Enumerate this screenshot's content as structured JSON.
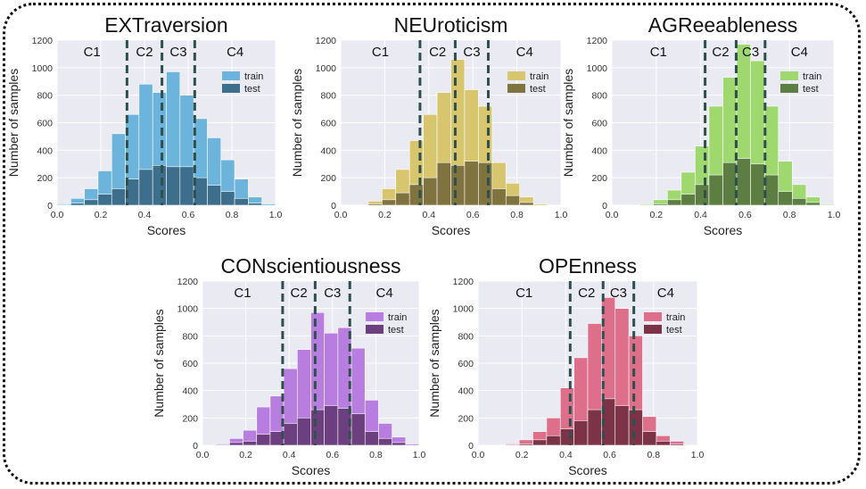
{
  "colors": {
    "plot_background": "#eaeaf2",
    "grid": "#ffffff",
    "divider": "#2f4f4f"
  },
  "chart_data": [
    {
      "type": "bar",
      "title": "EXTraversion",
      "xlabel": "Scores",
      "ylabel": "Number of samples",
      "xlim": [
        0.0,
        1.0
      ],
      "ylim": [
        0,
        1200
      ],
      "xticks": [
        "0.0",
        "0.2",
        "0.4",
        "0.6",
        "0.8",
        "1.0"
      ],
      "yticks": [
        "0",
        "200",
        "400",
        "600",
        "800",
        "1000",
        "1200"
      ],
      "grid": true,
      "legend": "upper-right",
      "bin_edges": [
        0.0,
        0.0625,
        0.125,
        0.1875,
        0.25,
        0.3125,
        0.375,
        0.4375,
        0.5,
        0.5625,
        0.625,
        0.6875,
        0.75,
        0.8125,
        0.875,
        0.9375
      ],
      "series": [
        {
          "name": "train",
          "color": "#6cb4dc",
          "values": [
            10,
            50,
            120,
            250,
            520,
            660,
            880,
            820,
            970,
            800,
            630,
            490,
            330,
            190,
            60,
            10
          ]
        },
        {
          "name": "test",
          "color": "#3d6e8c",
          "values": [
            2,
            15,
            40,
            80,
            120,
            190,
            260,
            290,
            280,
            280,
            200,
            145,
            100,
            50,
            15,
            0
          ]
        }
      ],
      "class_labels": [
        "C1",
        "C2",
        "C3",
        "C4"
      ],
      "thresholds": [
        0.32,
        0.48,
        0.63
      ]
    },
    {
      "type": "bar",
      "title": "NEUroticism",
      "xlabel": "Scores",
      "ylabel": "Number of samples",
      "xlim": [
        0.0,
        1.0
      ],
      "ylim": [
        0,
        1200
      ],
      "xticks": [
        "0.0",
        "0.2",
        "0.4",
        "0.6",
        "0.8",
        "1.0"
      ],
      "yticks": [
        "0",
        "200",
        "400",
        "600",
        "800",
        "1000",
        "1200"
      ],
      "grid": true,
      "legend": "upper-right",
      "bin_edges": [
        0.0,
        0.0625,
        0.125,
        0.1875,
        0.25,
        0.3125,
        0.375,
        0.4375,
        0.5,
        0.5625,
        0.625,
        0.6875,
        0.75,
        0.8125,
        0.875,
        0.9375
      ],
      "series": [
        {
          "name": "train",
          "color": "#d7c66e",
          "values": [
            0,
            0,
            30,
            120,
            260,
            470,
            660,
            820,
            1060,
            840,
            720,
            310,
            160,
            60,
            10,
            0
          ]
        },
        {
          "name": "test",
          "color": "#7f7340",
          "values": [
            0,
            0,
            10,
            40,
            90,
            150,
            200,
            310,
            290,
            320,
            310,
            120,
            70,
            20,
            0,
            0
          ]
        }
      ],
      "class_labels": [
        "C1",
        "C2",
        "C3",
        "C4"
      ],
      "thresholds": [
        0.36,
        0.52,
        0.67
      ]
    },
    {
      "type": "bar",
      "title": "AGReeableness",
      "xlabel": "Scores",
      "ylabel": "Number of samples",
      "xlim": [
        0.0,
        1.0
      ],
      "ylim": [
        0,
        1200
      ],
      "xticks": [
        "0.0",
        "0.2",
        "0.4",
        "0.6",
        "0.8",
        "1.0"
      ],
      "yticks": [
        "0",
        "200",
        "400",
        "600",
        "800",
        "1000",
        "1200"
      ],
      "grid": true,
      "legend": "upper-right",
      "bin_edges": [
        0.0,
        0.0625,
        0.125,
        0.1875,
        0.25,
        0.3125,
        0.375,
        0.4375,
        0.5,
        0.5625,
        0.625,
        0.6875,
        0.75,
        0.8125,
        0.875,
        0.9375
      ],
      "series": [
        {
          "name": "train",
          "color": "#9ed86e",
          "values": [
            0,
            0,
            10,
            40,
            110,
            240,
            430,
            720,
            930,
            1170,
            1050,
            720,
            320,
            150,
            60,
            10
          ]
        },
        {
          "name": "test",
          "color": "#5c7e42",
          "values": [
            0,
            0,
            2,
            10,
            40,
            80,
            150,
            220,
            310,
            340,
            300,
            220,
            100,
            50,
            20,
            5
          ]
        }
      ],
      "class_labels": [
        "C1",
        "C2",
        "C3",
        "C4"
      ],
      "thresholds": [
        0.42,
        0.56,
        0.69
      ]
    },
    {
      "type": "bar",
      "title": "CONscientiousness",
      "xlabel": "Scores",
      "ylabel": "Number of samples",
      "xlim": [
        0.0,
        1.0
      ],
      "ylim": [
        0,
        1200
      ],
      "xticks": [
        "0.0",
        "0.2",
        "0.4",
        "0.6",
        "0.8",
        "1.0"
      ],
      "yticks": [
        "0",
        "200",
        "400",
        "600",
        "800",
        "1000",
        "1200"
      ],
      "grid": true,
      "legend": "upper-right",
      "bin_edges": [
        0.0,
        0.0625,
        0.125,
        0.1875,
        0.25,
        0.3125,
        0.375,
        0.4375,
        0.5,
        0.5625,
        0.625,
        0.6875,
        0.75,
        0.8125,
        0.875,
        0.9375
      ],
      "series": [
        {
          "name": "train",
          "color": "#b77ee0",
          "values": [
            0,
            10,
            50,
            110,
            280,
            360,
            560,
            700,
            970,
            820,
            860,
            710,
            330,
            160,
            60,
            10
          ]
        },
        {
          "name": "test",
          "color": "#6c3f7e",
          "values": [
            0,
            2,
            20,
            30,
            80,
            100,
            160,
            200,
            260,
            290,
            270,
            230,
            100,
            50,
            20,
            0
          ]
        }
      ],
      "class_labels": [
        "C1",
        "C2",
        "C3",
        "C4"
      ],
      "thresholds": [
        0.37,
        0.52,
        0.68
      ]
    },
    {
      "type": "bar",
      "title": "OPEnness",
      "xlabel": "Scores",
      "ylabel": "Number of samples",
      "xlim": [
        0.0,
        1.0
      ],
      "ylim": [
        0,
        1200
      ],
      "xticks": [
        "0.0",
        "0.2",
        "0.4",
        "0.6",
        "0.8",
        "1.0"
      ],
      "yticks": [
        "0",
        "200",
        "400",
        "600",
        "800",
        "1000",
        "1200"
      ],
      "grid": true,
      "legend": "upper-right",
      "bin_edges": [
        0.0,
        0.0625,
        0.125,
        0.1875,
        0.25,
        0.3125,
        0.375,
        0.4375,
        0.5,
        0.5625,
        0.625,
        0.6875,
        0.75,
        0.8125,
        0.875,
        0.9375
      ],
      "series": [
        {
          "name": "train",
          "color": "#dd6f8a",
          "values": [
            0,
            0,
            10,
            40,
            100,
            200,
            420,
            640,
            890,
            1080,
            1000,
            800,
            210,
            70,
            30,
            0
          ]
        },
        {
          "name": "test",
          "color": "#7c3347",
          "values": [
            0,
            0,
            2,
            10,
            40,
            70,
            120,
            180,
            260,
            340,
            290,
            260,
            100,
            30,
            10,
            0
          ]
        }
      ],
      "class_labels": [
        "C1",
        "C2",
        "C3",
        "C4"
      ],
      "thresholds": [
        0.42,
        0.57,
        0.71
      ]
    }
  ]
}
